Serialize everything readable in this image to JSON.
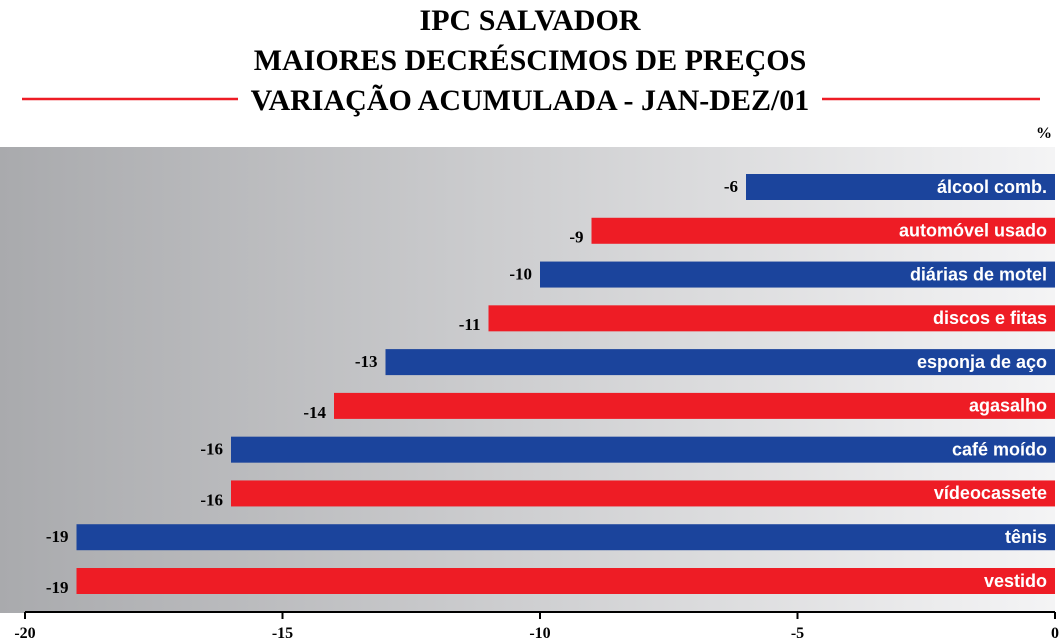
{
  "chart_data": {
    "type": "bar",
    "orientation": "horizontal",
    "title": [
      "IPC SALVADOR",
      "MAIORES DECRÉSCIMOS DE PREÇOS",
      "VARIAÇÃO ACUMULADA - JAN-DEZ/01"
    ],
    "unit": "%",
    "categories": [
      "álcool comb.",
      "automóvel usado",
      "diárias de motel",
      "discos e fitas",
      "esponja de aço",
      "agasalho",
      "café moído",
      "vídeocassete",
      "tênis",
      "vestido"
    ],
    "values": [
      -6,
      -9,
      -10,
      -11,
      -13,
      -14,
      -16,
      -16,
      -19,
      -19
    ],
    "colors": [
      "#1b449c",
      "#ee1c25",
      "#1b449c",
      "#ee1c25",
      "#1b449c",
      "#ee1c25",
      "#1b449c",
      "#ee1c25",
      "#1b449c",
      "#ee1c25"
    ],
    "xlim": [
      -20,
      0
    ],
    "xticks": [
      -20,
      -15,
      -10,
      -5,
      0
    ]
  }
}
